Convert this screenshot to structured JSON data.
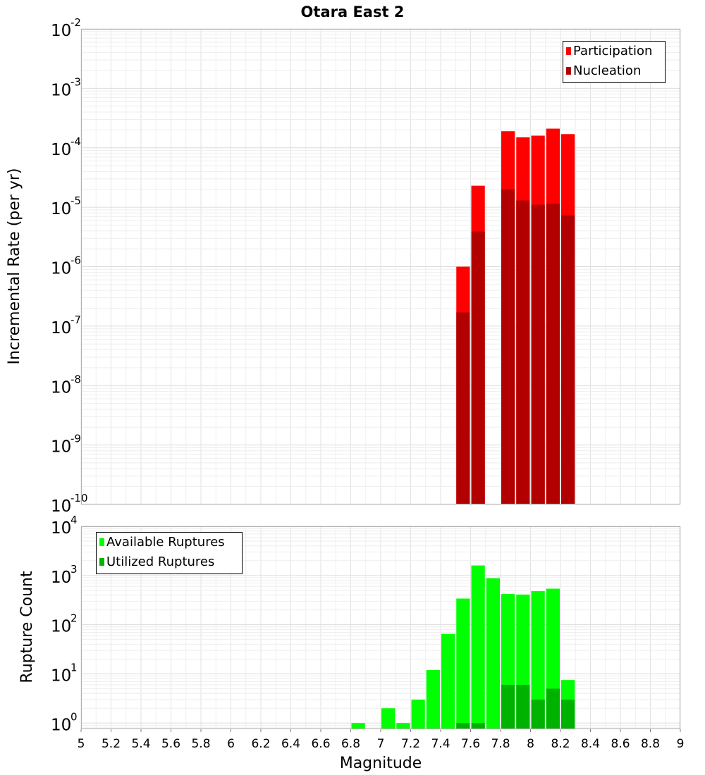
{
  "chart_data": [
    {
      "type": "bar",
      "title": "Otara East 2",
      "xlabel": "",
      "ylabel": "Incremental Rate (per yr)",
      "yscale": "log",
      "xlim": [
        5,
        9
      ],
      "ylim": [
        1e-10,
        0.01
      ],
      "grid": true,
      "legend_position": "top-right",
      "bin_width": 0.1,
      "x": [
        7.55,
        7.65,
        7.85,
        7.95,
        8.05,
        8.15,
        8.25
      ],
      "series": [
        {
          "name": "Participation",
          "color": "#ff0000",
          "values": [
            1e-06,
            2.3e-05,
            0.00019,
            0.00015,
            0.00016,
            0.00021,
            0.00017
          ]
        },
        {
          "name": "Nucleation",
          "color": "#b20000",
          "values": [
            1.7e-07,
            3.9e-06,
            2e-05,
            1.3e-05,
            1.1e-05,
            1.15e-05,
            7.3e-06
          ]
        }
      ],
      "ytick_exponents": [
        "-10",
        "-9",
        "-8",
        "-7",
        "-6",
        "-5",
        "-4",
        "-3",
        "-2"
      ]
    },
    {
      "type": "bar",
      "title": "",
      "xlabel": "Magnitude",
      "ylabel": "Rupture Count",
      "yscale": "log",
      "xlim": [
        5,
        9
      ],
      "ylim": [
        0.75,
        10000.0
      ],
      "grid": true,
      "legend_position": "top-left",
      "bin_width": 0.1,
      "series": [
        {
          "name": "Available Ruptures",
          "color": "#00ff00",
          "x": [
            6.85,
            7.05,
            7.15,
            7.25,
            7.35,
            7.45,
            7.55,
            7.65,
            7.75,
            7.85,
            7.95,
            8.05,
            8.15,
            8.25
          ],
          "values": [
            1,
            2,
            1,
            3,
            12,
            65,
            340,
            1600,
            880,
            420,
            410,
            480,
            540,
            7.5
          ]
        },
        {
          "name": "Utilized Ruptures",
          "color": "#00b200",
          "x": [
            7.55,
            7.65,
            7.85,
            7.95,
            8.05,
            8.15,
            8.25
          ],
          "values": [
            1,
            1,
            6,
            6,
            3,
            5,
            3
          ]
        }
      ],
      "ytick_exponents": [
        "0",
        "1",
        "2",
        "3",
        "4"
      ],
      "xticks": [
        "5",
        "5.2",
        "5.4",
        "5.6",
        "5.8",
        "6",
        "6.2",
        "6.4",
        "6.6",
        "6.8",
        "7",
        "7.2",
        "7.4",
        "7.6",
        "7.8",
        "8",
        "8.2",
        "8.4",
        "8.6",
        "8.8",
        "9"
      ]
    }
  ]
}
